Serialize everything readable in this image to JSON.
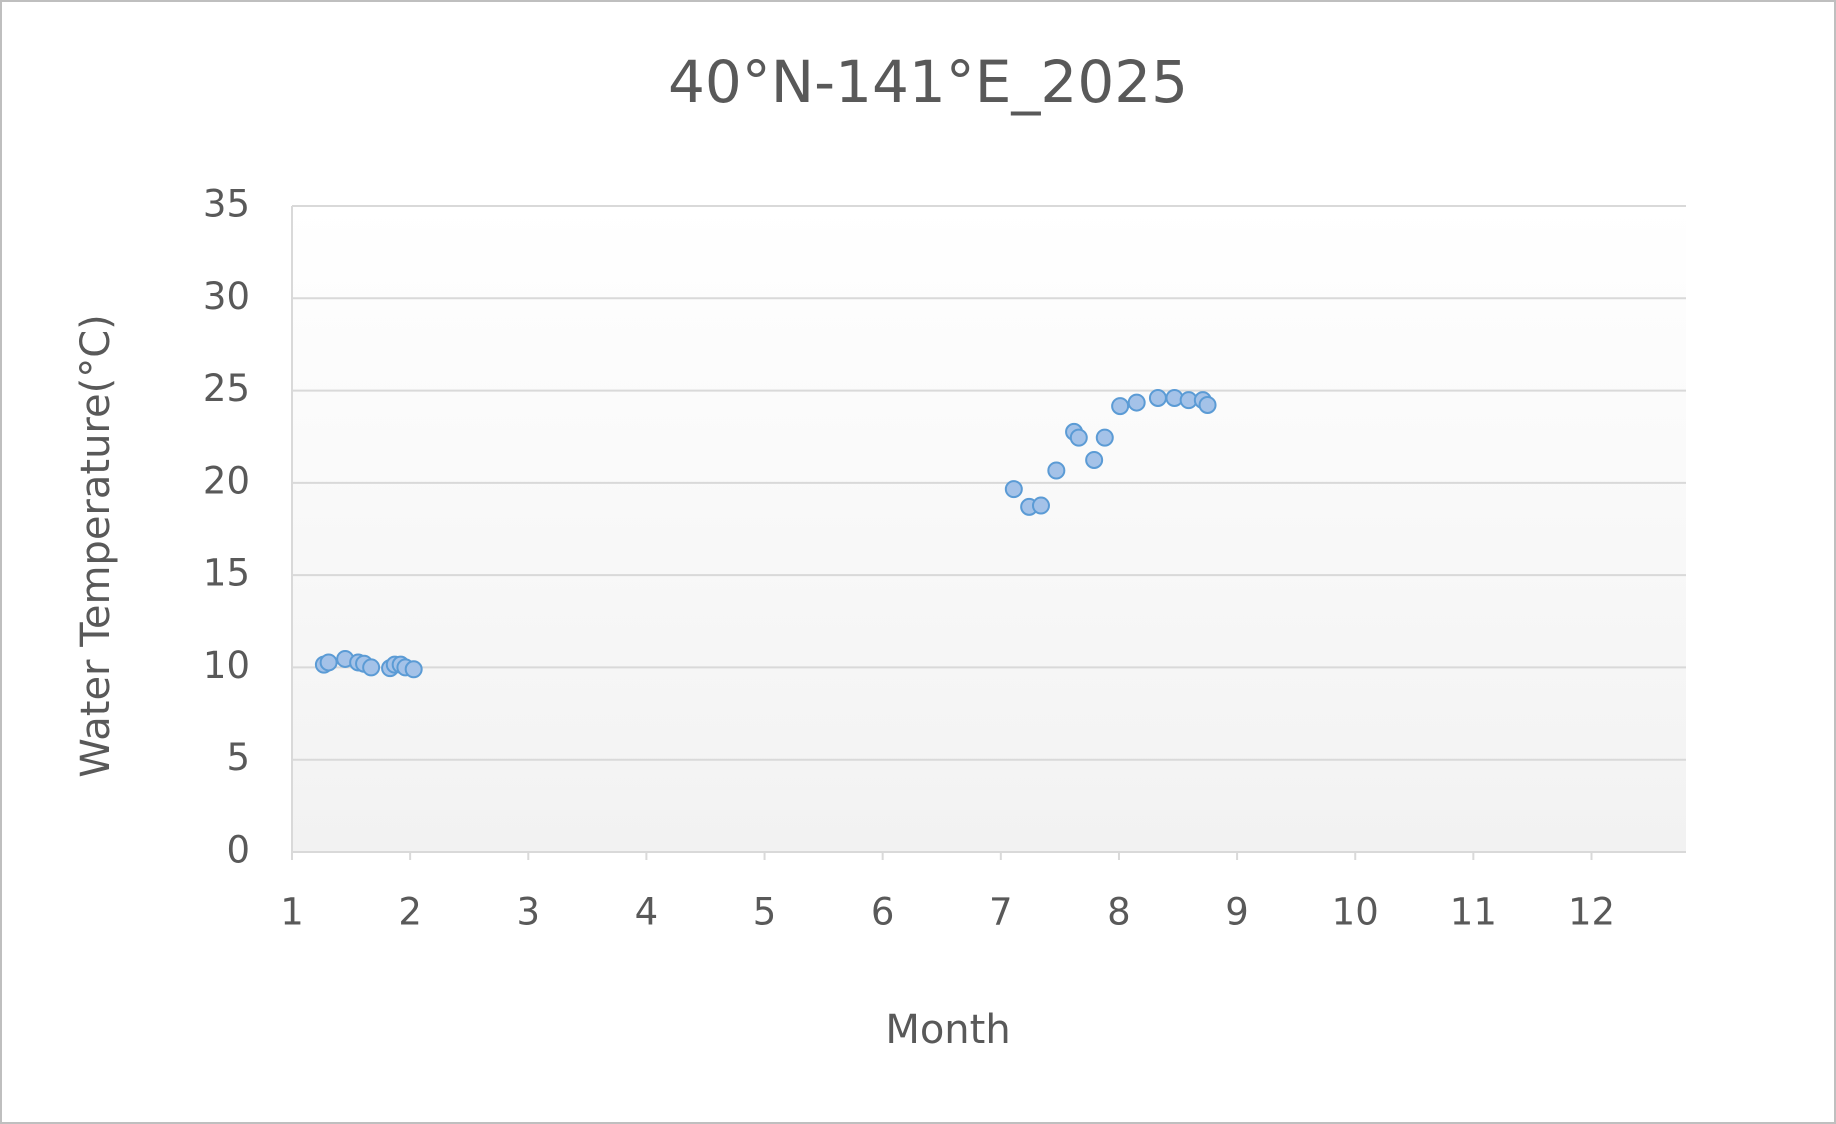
{
  "chart_data": {
    "type": "scatter",
    "title": "40°N-141°E_2025",
    "x_label": "Month",
    "y_label": "Water Temperature(°C)",
    "xlim": [
      1,
      12.8
    ],
    "xticks": [
      1,
      2,
      3,
      4,
      5,
      6,
      7,
      8,
      9,
      10,
      11,
      12
    ],
    "ylim": [
      0,
      35
    ],
    "yticks": [
      0,
      5,
      10,
      15,
      20,
      25,
      30,
      35
    ],
    "grid": true,
    "color": "#a4c2e8",
    "edge_color": "#5b9bd5",
    "x": [
      1.27,
      1.31,
      1.45,
      1.56,
      1.61,
      1.67,
      1.83,
      1.87,
      1.92,
      1.96,
      2.03,
      7.11,
      7.24,
      7.34,
      7.47,
      7.62,
      7.66,
      7.79,
      7.88,
      8.01,
      8.15,
      8.33,
      8.47,
      8.59,
      8.71,
      8.75
    ],
    "values": [
      10.15,
      10.27,
      10.46,
      10.27,
      10.2,
      10.0,
      9.96,
      10.15,
      10.15,
      10.0,
      9.9,
      19.66,
      18.7,
      18.77,
      20.67,
      22.76,
      22.45,
      21.24,
      22.45,
      24.16,
      24.35,
      24.6,
      24.6,
      24.48,
      24.48,
      24.22
    ]
  }
}
